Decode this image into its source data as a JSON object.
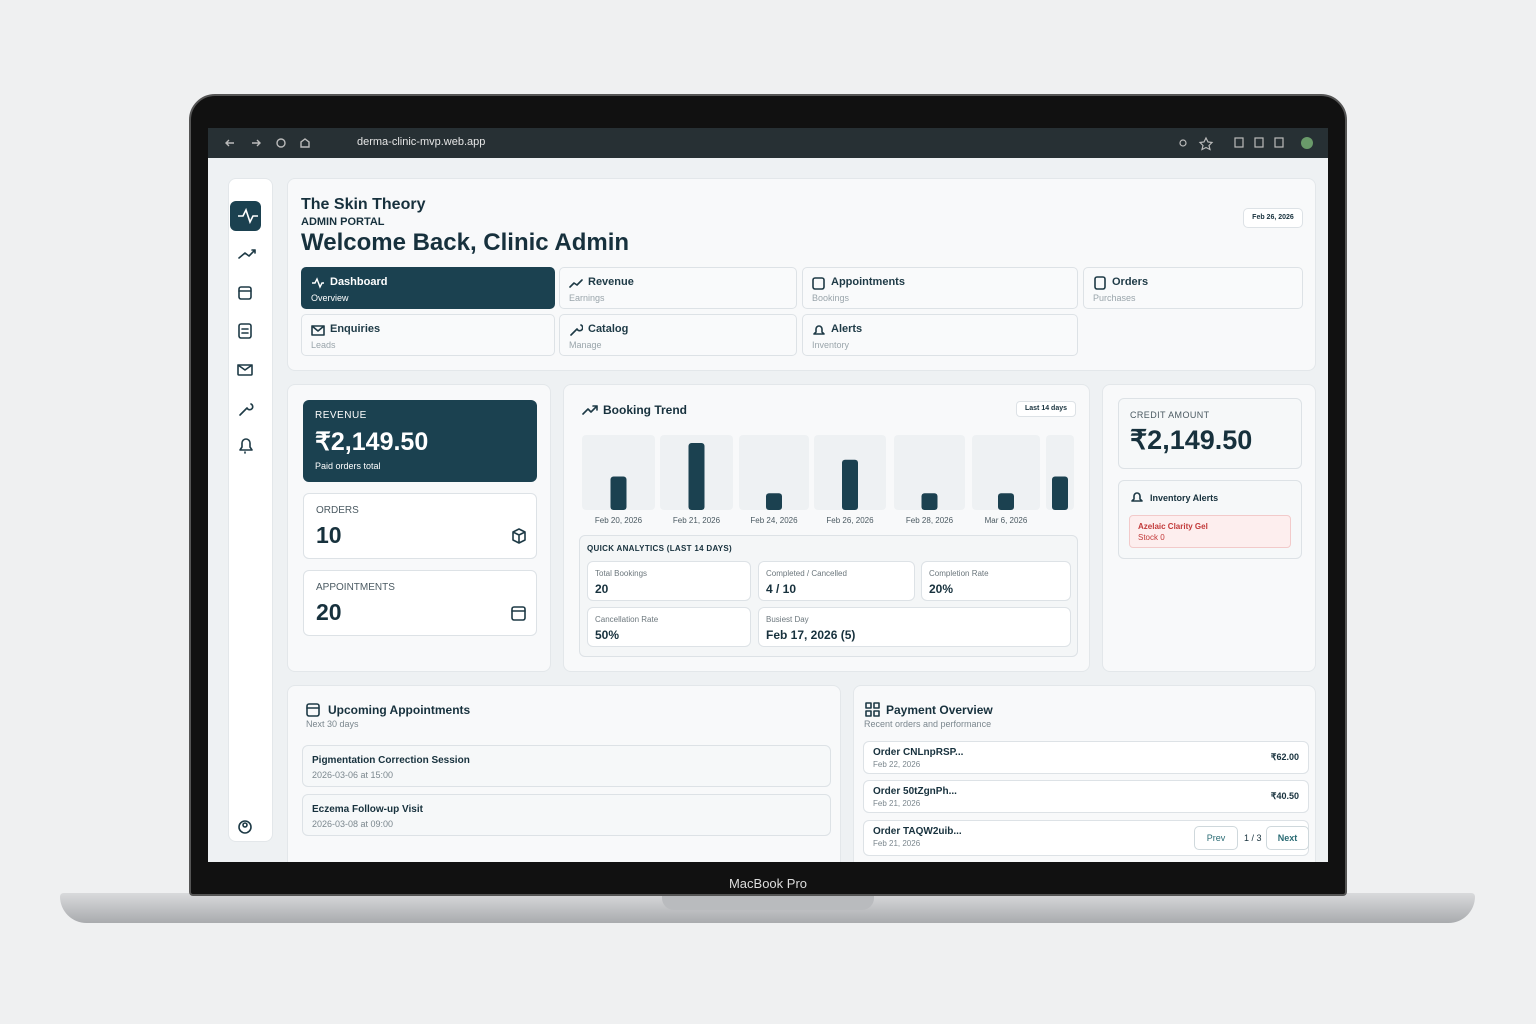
{
  "browser": {
    "url": "derma-clinic-mvp.web.app"
  },
  "device": {
    "label": "MacBook Pro"
  },
  "header": {
    "brand": "The Skin Theory",
    "portal": "ADMIN PORTAL",
    "welcome": "Welcome Back, Clinic Admin",
    "date": "Feb 26, 2026"
  },
  "tabs": [
    {
      "label": "Dashboard",
      "sub": "Overview"
    },
    {
      "label": "Revenue",
      "sub": "Earnings"
    },
    {
      "label": "Appointments",
      "sub": "Bookings"
    },
    {
      "label": "Orders",
      "sub": "Purchases"
    },
    {
      "label": "Enquiries",
      "sub": "Leads"
    },
    {
      "label": "Catalog",
      "sub": "Manage"
    },
    {
      "label": "Alerts",
      "sub": "Inventory"
    }
  ],
  "stats": {
    "revenue": {
      "label": "REVENUE",
      "value": "₹2,149.50",
      "note": "Paid orders total"
    },
    "orders": {
      "label": "ORDERS",
      "value": "10"
    },
    "appointments": {
      "label": "APPOINTMENTS",
      "value": "20"
    }
  },
  "chart_data": {
    "type": "bar",
    "title": "Booking Trend",
    "badge": "Last 14 days",
    "categories": [
      "Feb 20, 2026",
      "Feb 21, 2026",
      "Feb 24, 2026",
      "Feb 26, 2026",
      "Feb 28, 2026",
      "Mar 6, 2026",
      null
    ],
    "values": [
      2,
      4,
      1,
      3,
      1,
      1,
      2
    ],
    "color": "#1b4150"
  },
  "analytics": {
    "title": "QUICK ANALYTICS (LAST 14 DAYS)",
    "cells": [
      {
        "label": "Total Bookings",
        "value": "20"
      },
      {
        "label": "Completed / Cancelled",
        "value": "4 / 10"
      },
      {
        "label": "Completion Rate",
        "value": "20%"
      },
      {
        "label": "Cancellation Rate",
        "value": "50%"
      },
      {
        "label": "Busiest Day",
        "value": "Feb 17, 2026 (5)"
      }
    ]
  },
  "credit": {
    "label": "CREDIT AMOUNT",
    "value": "₹2,149.50"
  },
  "inventory": {
    "title": "Inventory Alerts",
    "items": [
      {
        "name": "Azelaic Clarity Gel",
        "stock": "Stock 0"
      }
    ]
  },
  "appointments": {
    "title": "Upcoming Appointments",
    "subtitle": "Next 30 days",
    "items": [
      {
        "name": "Pigmentation Correction Session",
        "time": "2026-03-06 at 15:00"
      },
      {
        "name": "Eczema Follow-up Visit",
        "time": "2026-03-08 at 09:00"
      }
    ]
  },
  "payments": {
    "title": "Payment Overview",
    "subtitle": "Recent orders and performance",
    "items": [
      {
        "order": "Order CNLnpRSP...",
        "date": "Feb 22, 2026",
        "amount": "₹62.00"
      },
      {
        "order": "Order 50tZgnPh...",
        "date": "Feb 21, 2026",
        "amount": "₹40.50"
      },
      {
        "order": "Order TAQW2uib...",
        "date": "Feb 21, 2026"
      }
    ],
    "prev": "Prev",
    "page": "1 / 3",
    "next": "Next"
  }
}
